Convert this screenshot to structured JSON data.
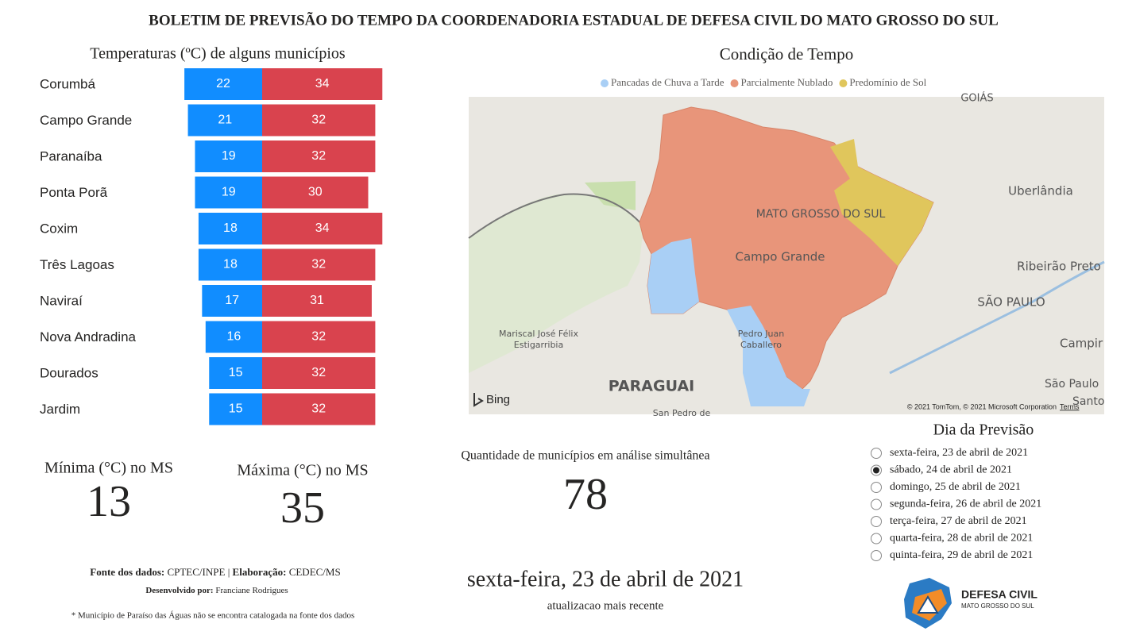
{
  "header": {
    "title": "BOLETIM DE PREVISÃO DO TEMPO DA COORDENADORIA ESTADUAL DE DEFESA CIVIL DO MATO GROSSO DO SUL"
  },
  "chart_data": {
    "type": "bar",
    "title": "Temperaturas (ºC) de alguns municípios",
    "categories": [
      "Corumbá",
      "Campo Grande",
      "Paranaíba",
      "Ponta Porã",
      "Coxim",
      "Três Lagoas",
      "Naviraí",
      "Nova Andradina",
      "Dourados",
      "Jardim"
    ],
    "series": [
      {
        "color": "#118dff",
        "values": [
          22,
          21,
          19,
          19,
          18,
          18,
          17,
          16,
          15,
          15
        ]
      },
      {
        "color": "#d9434e",
        "values": [
          34,
          32,
          32,
          30,
          34,
          32,
          31,
          32,
          32,
          32
        ]
      }
    ]
  },
  "map": {
    "title": "Condição de Tempo",
    "legend": [
      {
        "label": "Pancadas de Chuva a Tarde",
        "color": "#a9cff5"
      },
      {
        "label": "Parcialmente Nublado",
        "color": "#e8957a"
      },
      {
        "label": "Predomínio de Sol",
        "color": "#e0c65c"
      }
    ],
    "labels": [
      "GOIÁS",
      "Uberlândia",
      "MATO GROSSO DO SUL",
      "Campo Grande",
      "Ribeirão Preto",
      "SÃO PAULO",
      "Campir",
      "Mariscal José Félix",
      "Estigarribia",
      "Pedro Juan",
      "Caballero",
      "PARAGUAI",
      "São Paulo",
      "Santo",
      "San Pedro de",
      "Bing"
    ],
    "attribution": "© 2021 TomTom, © 2021 Microsoft Corporation",
    "terms": "Terms"
  },
  "cards": [
    {
      "label": "Mínima (°C) no MS",
      "value": 13
    },
    {
      "label": "Máxima (°C) no MS",
      "value": 35
    },
    {
      "label": "Quantidade de municípios em análise simultânea",
      "value": 78
    }
  ],
  "date_card": {
    "value": "sexta-feira, 23 de abril de 2021",
    "label": "atualizacao mais recente"
  },
  "slicer": {
    "title": "Dia da Previsão",
    "options": [
      "sexta-feira, 23 de abril de 2021",
      "sábado, 24 de abril de 2021",
      "domingo, 25 de abril de 2021",
      "segunda-feira, 26 de abril de 2021",
      "terça-feira, 27 de abril de 2021",
      "quarta-feira, 28 de abril de 2021",
      "quinta-feira, 29 de abril de 2021"
    ],
    "selected": 1
  },
  "footer": {
    "source_label": "Fonte dos dados:",
    "source": "CPTEC/INPE",
    "separator": "|",
    "made_label": "Elaboração:",
    "made": "CEDEC/MS",
    "dev_label": "Desenvolvido por:",
    "dev": "Franciane Rodrigues",
    "note": "* Município de Paraíso das Águas não se encontra catalogada na fonte dos dados"
  },
  "logo": {
    "title": "DEFESA CIVIL",
    "subtitle": "MATO GROSSO DO SUL"
  }
}
